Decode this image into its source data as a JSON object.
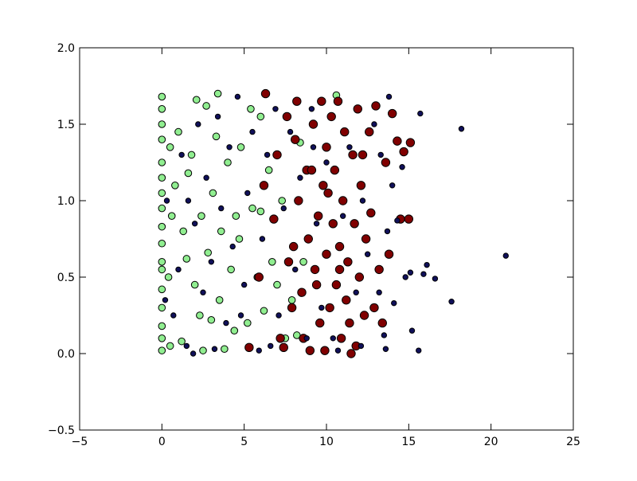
{
  "chart_data": {
    "type": "scatter",
    "title": "",
    "xlabel": "",
    "ylabel": "",
    "xlim": [
      -5,
      25
    ],
    "ylim": [
      -0.5,
      2.0
    ],
    "xticks": [
      -5,
      0,
      5,
      10,
      15,
      20,
      25
    ],
    "xtick_labels": [
      "−5",
      "0",
      "5",
      "10",
      "15",
      "20",
      "25"
    ],
    "yticks": [
      -0.5,
      0.0,
      0.5,
      1.0,
      1.5,
      2.0
    ],
    "ytick_labels": [
      "−0.5",
      "0.0",
      "0.5",
      "1.0",
      "1.5",
      "2.0"
    ],
    "grid": false,
    "legend": "none",
    "series": [
      {
        "color": "#90ee90",
        "edge": "#000000",
        "marker_size": "medium",
        "points": [
          [
            0,
            0.02
          ],
          [
            0,
            0.1
          ],
          [
            0,
            0.18
          ],
          [
            0,
            0.3
          ],
          [
            0,
            0.42
          ],
          [
            0,
            0.55
          ],
          [
            0,
            0.6
          ],
          [
            0,
            0.72
          ],
          [
            0,
            0.83
          ],
          [
            0,
            0.95
          ],
          [
            0,
            1.05
          ],
          [
            0,
            1.15
          ],
          [
            0,
            1.25
          ],
          [
            0,
            1.4
          ],
          [
            0,
            1.5
          ],
          [
            0,
            1.6
          ],
          [
            0,
            1.68
          ],
          [
            0.5,
            0.05
          ],
          [
            0.4,
            0.5
          ],
          [
            0.5,
            1.35
          ],
          [
            0.6,
            0.9
          ],
          [
            0.8,
            1.1
          ],
          [
            1.2,
            0.08
          ],
          [
            1.3,
            0.8
          ],
          [
            1.5,
            0.62
          ],
          [
            1.6,
            1.18
          ],
          [
            1.8,
            1.3
          ],
          [
            2,
            0.45
          ],
          [
            2.1,
            1.66
          ],
          [
            2.4,
            0.9
          ],
          [
            2.5,
            0.02
          ],
          [
            2.7,
            1.62
          ],
          [
            2.8,
            0.66
          ],
          [
            3,
            0.22
          ],
          [
            3.1,
            1.05
          ],
          [
            3.3,
            1.42
          ],
          [
            3.5,
            0.35
          ],
          [
            3.6,
            0.8
          ],
          [
            3.8,
            0.03
          ],
          [
            4,
            1.25
          ],
          [
            4.2,
            0.55
          ],
          [
            4.4,
            0.15
          ],
          [
            4.7,
            0.75
          ],
          [
            4.8,
            1.35
          ],
          [
            5.2,
            0.2
          ],
          [
            5.4,
            1.6
          ],
          [
            5.5,
            0.95
          ],
          [
            5.8,
            0.5
          ],
          [
            6,
            1.55
          ],
          [
            6.2,
            0.28
          ],
          [
            6.5,
            1.2
          ],
          [
            6.7,
            0.6
          ],
          [
            7,
            0.45
          ],
          [
            7.3,
            1.0
          ],
          [
            7.5,
            0.1
          ],
          [
            7.9,
            0.35
          ],
          [
            8.2,
            0.12
          ],
          [
            8.4,
            1.38
          ],
          [
            8.6,
            0.6
          ],
          [
            10.6,
            1.69
          ],
          [
            3.4,
            1.7
          ],
          [
            1,
            1.45
          ],
          [
            2.3,
            0.25
          ],
          [
            4.5,
            0.9
          ],
          [
            6,
            0.93
          ]
        ]
      },
      {
        "color": "#800000",
        "edge": "#000000",
        "marker_size": "large",
        "points": [
          [
            5.3,
            0.04
          ],
          [
            5.9,
            0.5
          ],
          [
            6.2,
            1.1
          ],
          [
            6.3,
            1.7
          ],
          [
            6.8,
            0.88
          ],
          [
            7,
            1.3
          ],
          [
            7.2,
            0.1
          ],
          [
            7.4,
            0.04
          ],
          [
            7.6,
            1.55
          ],
          [
            7.9,
            0.3
          ],
          [
            8,
            0.7
          ],
          [
            8.2,
            1.65
          ],
          [
            8.3,
            1.0
          ],
          [
            8.5,
            0.4
          ],
          [
            8.6,
            0.1
          ],
          [
            8.8,
            1.2
          ],
          [
            8.9,
            0.75
          ],
          [
            9,
            0.02
          ],
          [
            9.2,
            1.5
          ],
          [
            9.3,
            0.55
          ],
          [
            9.5,
            0.9
          ],
          [
            9.6,
            0.2
          ],
          [
            9.7,
            1.65
          ],
          [
            9.8,
            1.1
          ],
          [
            9.9,
            0.02
          ],
          [
            10,
            0.65
          ],
          [
            10,
            1.35
          ],
          [
            10.2,
            0.3
          ],
          [
            10.3,
            1.55
          ],
          [
            10.4,
            0.85
          ],
          [
            10.5,
            1.2
          ],
          [
            10.6,
            0.45
          ],
          [
            10.7,
            1.65
          ],
          [
            10.8,
            0.7
          ],
          [
            10.9,
            0.1
          ],
          [
            11,
            1.0
          ],
          [
            11.1,
            1.45
          ],
          [
            11.2,
            0.35
          ],
          [
            11.3,
            0.6
          ],
          [
            11.5,
            0.0
          ],
          [
            11.6,
            1.3
          ],
          [
            11.7,
            0.85
          ],
          [
            11.8,
            0.05
          ],
          [
            11.9,
            1.6
          ],
          [
            12,
            0.5
          ],
          [
            12.1,
            1.1
          ],
          [
            12.3,
            0.25
          ],
          [
            12.4,
            0.75
          ],
          [
            12.6,
            1.45
          ],
          [
            12.7,
            0.92
          ],
          [
            12.9,
            0.3
          ],
          [
            13,
            1.62
          ],
          [
            13.2,
            0.55
          ],
          [
            13.4,
            0.2
          ],
          [
            13.6,
            1.25
          ],
          [
            13.8,
            0.65
          ],
          [
            14,
            1.57
          ],
          [
            14.3,
            1.39
          ],
          [
            14.5,
            0.88
          ],
          [
            14.7,
            1.32
          ],
          [
            15,
            0.88
          ],
          [
            15.1,
            1.38
          ],
          [
            9.4,
            0.45
          ],
          [
            8.1,
            1.4
          ],
          [
            10.1,
            1.05
          ],
          [
            11.4,
            0.2
          ],
          [
            12.2,
            1.3
          ],
          [
            7.7,
            0.6
          ],
          [
            9.1,
            1.2
          ],
          [
            10.8,
            0.55
          ]
        ]
      },
      {
        "color": "#10105a",
        "edge": "#000000",
        "marker_size": "small",
        "points": [
          [
            0.2,
            0.35
          ],
          [
            0.3,
            1.0
          ],
          [
            0.7,
            0.25
          ],
          [
            1,
            0.55
          ],
          [
            1.2,
            1.3
          ],
          [
            1.5,
            0.05
          ],
          [
            1.9,
            0.0
          ],
          [
            2,
            0.85
          ],
          [
            2.2,
            1.5
          ],
          [
            2.5,
            0.4
          ],
          [
            2.7,
            1.15
          ],
          [
            3,
            0.6
          ],
          [
            3.2,
            0.03
          ],
          [
            3.4,
            1.55
          ],
          [
            3.6,
            0.95
          ],
          [
            3.9,
            0.2
          ],
          [
            4.1,
            1.35
          ],
          [
            4.3,
            0.7
          ],
          [
            4.6,
            1.68
          ],
          [
            5,
            0.45
          ],
          [
            5.2,
            1.05
          ],
          [
            5.5,
            1.45
          ],
          [
            5.9,
            0.02
          ],
          [
            6.1,
            0.75
          ],
          [
            6.4,
            1.3
          ],
          [
            6.6,
            0.05
          ],
          [
            6.9,
            1.6
          ],
          [
            7.1,
            0.25
          ],
          [
            7.4,
            0.95
          ],
          [
            7.8,
            1.45
          ],
          [
            8.1,
            0.55
          ],
          [
            8.4,
            1.15
          ],
          [
            8.8,
            0.1
          ],
          [
            9.1,
            1.6
          ],
          [
            9.4,
            0.85
          ],
          [
            9.7,
            0.3
          ],
          [
            10,
            1.25
          ],
          [
            10.4,
            0.1
          ],
          [
            10.7,
            0.02
          ],
          [
            11,
            0.9
          ],
          [
            11.4,
            1.35
          ],
          [
            11.8,
            0.4
          ],
          [
            12.2,
            1.0
          ],
          [
            12.5,
            0.65
          ],
          [
            12.9,
            1.5
          ],
          [
            13.2,
            0.4
          ],
          [
            13.5,
            0.12
          ],
          [
            13.6,
            0.03
          ],
          [
            13.7,
            0.8
          ],
          [
            13.8,
            1.68
          ],
          [
            14,
            1.1
          ],
          [
            14.3,
            0.87
          ],
          [
            14.6,
            1.22
          ],
          [
            14.8,
            0.5
          ],
          [
            15.1,
            0.53
          ],
          [
            15.2,
            0.15
          ],
          [
            15.6,
            0.02
          ],
          [
            15.7,
            1.57
          ],
          [
            15.9,
            0.52
          ],
          [
            16.1,
            0.58
          ],
          [
            16.6,
            0.49
          ],
          [
            17.6,
            0.34
          ],
          [
            18.2,
            1.47
          ],
          [
            20.9,
            0.64
          ],
          [
            14.1,
            0.33
          ],
          [
            13.3,
            1.3
          ],
          [
            12.1,
            0.05
          ],
          [
            9.2,
            1.35
          ],
          [
            4.8,
            0.25
          ],
          [
            1.6,
            1.0
          ]
        ]
      }
    ]
  }
}
